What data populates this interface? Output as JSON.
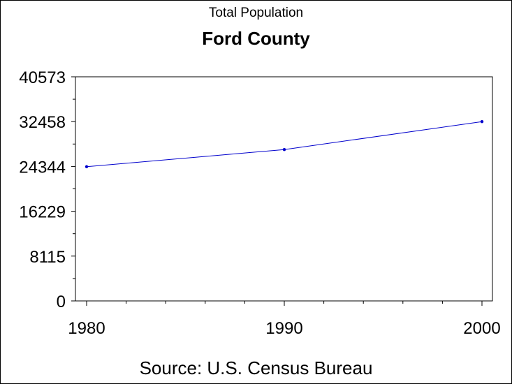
{
  "chart_data": {
    "type": "line",
    "subtitle": "Total Population",
    "title": "Ford County",
    "source": "Source: U.S. Census Bureau",
    "x": [
      1980,
      1990,
      2000
    ],
    "x_ticks": [
      "1980",
      "1990",
      "2000"
    ],
    "xlim": [
      1980,
      2000
    ],
    "series": [
      {
        "values": [
          24300,
          27400,
          32458
        ]
      }
    ],
    "y_ticks": [
      "0",
      "8115",
      "16229",
      "24344",
      "32458",
      "40573"
    ],
    "ylim": [
      0,
      40573
    ],
    "grid": false,
    "colors": {
      "line": "#0000cc",
      "axis": "#000000",
      "background": "#ffffff"
    }
  }
}
